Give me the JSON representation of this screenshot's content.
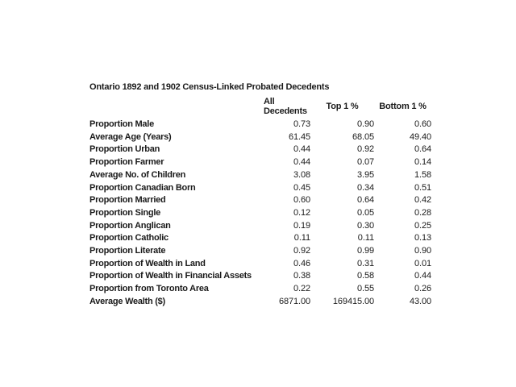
{
  "page": {
    "background": "#ffffff",
    "text_color": "#1a1a1a"
  },
  "table": {
    "title": "Ontario 1892 and 1902 Census-Linked Probated Decedents",
    "columns": {
      "label": "",
      "all": "All Decedents",
      "top1": "Top 1 %",
      "bottom1": "Bottom 1 %"
    },
    "rows": [
      {
        "label": "Proportion Male",
        "all": "0.73",
        "top1": "0.90",
        "bottom1": "0.60"
      },
      {
        "label": "Average Age (Years)",
        "all": "61.45",
        "top1": "68.05",
        "bottom1": "49.40"
      },
      {
        "label": "Proportion Urban",
        "all": "0.44",
        "top1": "0.92",
        "bottom1": "0.64"
      },
      {
        "label": "Proportion Farmer",
        "all": "0.44",
        "top1": "0.07",
        "bottom1": "0.14"
      },
      {
        "label": "Average No. of Children",
        "all": "3.08",
        "top1": "3.95",
        "bottom1": "1.58"
      },
      {
        "label": "Proportion Canadian Born",
        "all": "0.45",
        "top1": "0.34",
        "bottom1": "0.51"
      },
      {
        "label": "Proportion Married",
        "all": "0.60",
        "top1": "0.64",
        "bottom1": "0.42"
      },
      {
        "label": "Proportion Single",
        "all": "0.12",
        "top1": "0.05",
        "bottom1": "0.28"
      },
      {
        "label": "Proportion Anglican",
        "all": "0.19",
        "top1": "0.30",
        "bottom1": "0.25"
      },
      {
        "label": "Proportion Catholic",
        "all": "0.11",
        "top1": "0.11",
        "bottom1": "0.13"
      },
      {
        "label": "Proportion Literate",
        "all": "0.92",
        "top1": "0.99",
        "bottom1": "0.90"
      },
      {
        "label": "Proportion of Wealth in Land",
        "all": "0.46",
        "top1": "0.31",
        "bottom1": "0.01"
      },
      {
        "label": "Proportion of Wealth in Financial Assets",
        "all": "0.38",
        "top1": "0.58",
        "bottom1": "0.44"
      },
      {
        "label": "Proportion from Toronto Area",
        "all": "0.22",
        "top1": "0.55",
        "bottom1": "0.26"
      },
      {
        "label": "Average Wealth ($)",
        "all": "6871.00",
        "top1": "169415.00",
        "bottom1": "43.00"
      }
    ]
  }
}
